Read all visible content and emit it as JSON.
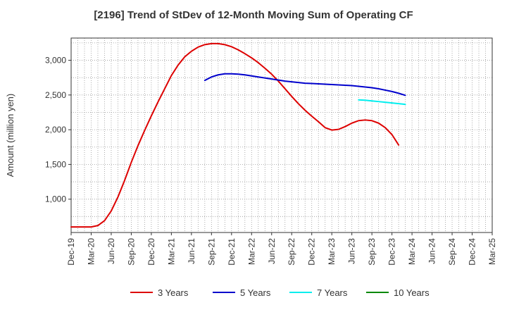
{
  "chart_data": {
    "type": "line",
    "title": "[2196]  Trend of StDev of 12-Month Moving Sum of Operating CF",
    "xlabel": "",
    "ylabel": "Amount (million yen)",
    "ylim": [
      520,
      3320
    ],
    "yticks": [
      1000,
      1500,
      2000,
      2500,
      3000
    ],
    "ytick_labels": [
      "1,000",
      "1,500",
      "2,000",
      "2,500",
      "3,000"
    ],
    "x_tick_labels": [
      "Dec-19",
      "Mar-20",
      "Jun-20",
      "Sep-20",
      "Dec-20",
      "Mar-21",
      "Jun-21",
      "Sep-21",
      "Dec-21",
      "Mar-22",
      "Jun-22",
      "Sep-22",
      "Dec-22",
      "Mar-23",
      "Jun-23",
      "Sep-23",
      "Dec-23",
      "Mar-24",
      "Jun-24",
      "Sep-24",
      "Dec-24",
      "Mar-25"
    ],
    "grid": true,
    "legend_position": "bottom",
    "series": [
      {
        "name": "3 Years",
        "color": "#dd0000",
        "values": [
          [
            "Dec-19",
            600
          ],
          [
            "Jan-20",
            600
          ],
          [
            "Feb-20",
            600
          ],
          [
            "Mar-20",
            600
          ],
          [
            "Apr-20",
            620
          ],
          [
            "May-20",
            690
          ],
          [
            "Jun-20",
            830
          ],
          [
            "Jul-20",
            1030
          ],
          [
            "Aug-20",
            1270
          ],
          [
            "Sep-20",
            1530
          ],
          [
            "Oct-20",
            1770
          ],
          [
            "Nov-20",
            1990
          ],
          [
            "Dec-20",
            2200
          ],
          [
            "Jan-21",
            2400
          ],
          [
            "Feb-21",
            2590
          ],
          [
            "Mar-21",
            2780
          ],
          [
            "Apr-21",
            2930
          ],
          [
            "May-21",
            3050
          ],
          [
            "Jun-21",
            3130
          ],
          [
            "Jul-21",
            3190
          ],
          [
            "Aug-21",
            3225
          ],
          [
            "Sep-21",
            3240
          ],
          [
            "Oct-21",
            3240
          ],
          [
            "Nov-21",
            3225
          ],
          [
            "Dec-21",
            3195
          ],
          [
            "Jan-22",
            3150
          ],
          [
            "Feb-22",
            3095
          ],
          [
            "Mar-22",
            3035
          ],
          [
            "Apr-22",
            2965
          ],
          [
            "May-22",
            2885
          ],
          [
            "Jun-22",
            2800
          ],
          [
            "Jul-22",
            2700
          ],
          [
            "Aug-22",
            2590
          ],
          [
            "Sep-22",
            2480
          ],
          [
            "Oct-22",
            2375
          ],
          [
            "Nov-22",
            2280
          ],
          [
            "Dec-22",
            2195
          ],
          [
            "Jan-23",
            2115
          ],
          [
            "Feb-23",
            2030
          ],
          [
            "Mar-23",
            1995
          ],
          [
            "Apr-23",
            2005
          ],
          [
            "May-23",
            2045
          ],
          [
            "Jun-23",
            2095
          ],
          [
            "Jul-23",
            2130
          ],
          [
            "Aug-23",
            2140
          ],
          [
            "Sep-23",
            2130
          ],
          [
            "Oct-23",
            2095
          ],
          [
            "Nov-23",
            2030
          ],
          [
            "Dec-23",
            1930
          ],
          [
            "Jan-24",
            1780
          ]
        ]
      },
      {
        "name": "5 Years",
        "color": "#0000cc",
        "values": [
          [
            "Aug-21",
            2710
          ],
          [
            "Sep-21",
            2760
          ],
          [
            "Oct-21",
            2790
          ],
          [
            "Nov-21",
            2805
          ],
          [
            "Dec-21",
            2805
          ],
          [
            "Jan-22",
            2800
          ],
          [
            "Feb-22",
            2790
          ],
          [
            "Mar-22",
            2775
          ],
          [
            "Apr-22",
            2760
          ],
          [
            "May-22",
            2745
          ],
          [
            "Jun-22",
            2730
          ],
          [
            "Jul-22",
            2715
          ],
          [
            "Aug-22",
            2700
          ],
          [
            "Sep-22",
            2690
          ],
          [
            "Oct-22",
            2680
          ],
          [
            "Nov-22",
            2670
          ],
          [
            "Dec-22",
            2665
          ],
          [
            "Jan-23",
            2660
          ],
          [
            "Feb-23",
            2655
          ],
          [
            "Mar-23",
            2650
          ],
          [
            "Apr-23",
            2645
          ],
          [
            "May-23",
            2640
          ],
          [
            "Jun-23",
            2635
          ],
          [
            "Jul-23",
            2625
          ],
          [
            "Aug-23",
            2615
          ],
          [
            "Sep-23",
            2605
          ],
          [
            "Oct-23",
            2590
          ],
          [
            "Nov-23",
            2570
          ],
          [
            "Dec-23",
            2550
          ],
          [
            "Jan-24",
            2525
          ],
          [
            "Feb-24",
            2495
          ]
        ]
      },
      {
        "name": "7 Years",
        "color": "#00eeee",
        "values": [
          [
            "Jul-23",
            2430
          ],
          [
            "Aug-23",
            2425
          ],
          [
            "Sep-23",
            2415
          ],
          [
            "Oct-23",
            2405
          ],
          [
            "Nov-23",
            2395
          ],
          [
            "Dec-23",
            2385
          ],
          [
            "Jan-24",
            2375
          ],
          [
            "Feb-24",
            2365
          ]
        ]
      },
      {
        "name": "10 Years",
        "color": "#008800",
        "values": []
      }
    ]
  }
}
